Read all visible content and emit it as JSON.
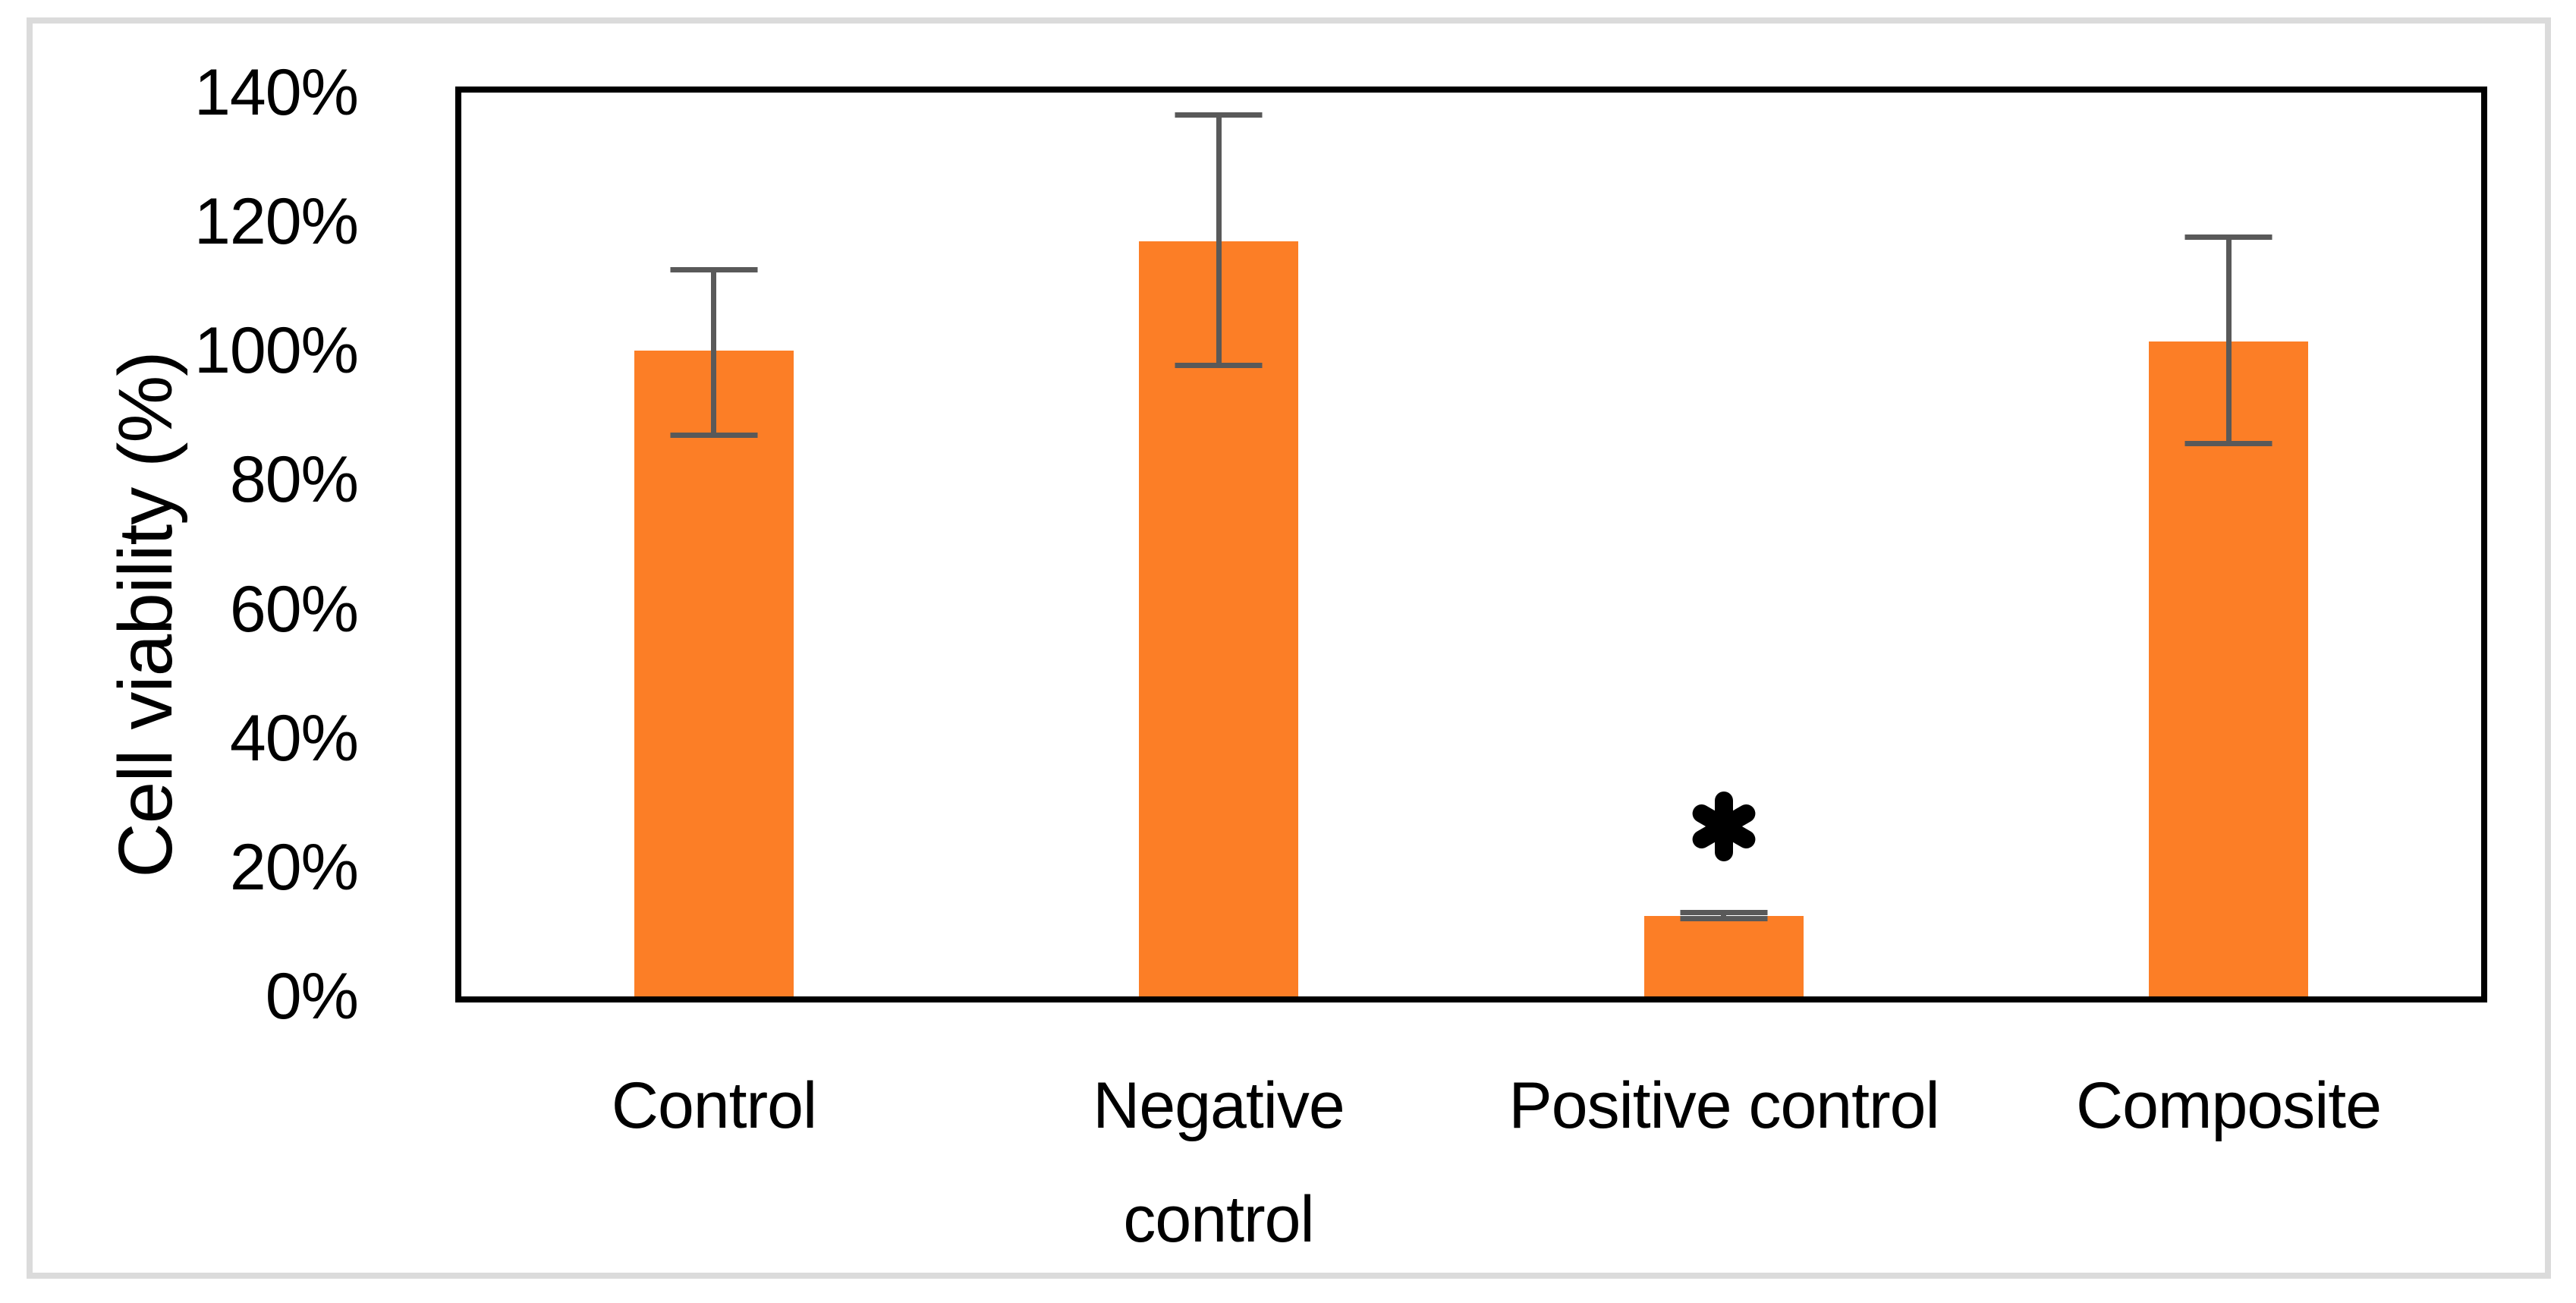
{
  "chart_data": {
    "type": "bar",
    "title": "",
    "xlabel": "",
    "ylabel": "Cell viability (%)",
    "categories": [
      "Control",
      "Negative control",
      "Positive control",
      "Composite"
    ],
    "values": [
      100,
      117,
      12.5,
      101.5
    ],
    "error_plus": [
      13,
      20,
      0.9,
      16.5
    ],
    "error_minus": [
      13.5,
      19.7,
      0.9,
      16.3
    ],
    "ylim": [
      0,
      140
    ],
    "ytick_step": 20,
    "ytick_labels": [
      "0%",
      "20%",
      "40%",
      "60%",
      "80%",
      "100%",
      "120%",
      "140%"
    ],
    "grid": false,
    "legend_position": "none",
    "bar_color": "#FC7E26",
    "error_bar_color": "#595959",
    "axis_color": "#000000",
    "figure_border_color": "#DBDBDB",
    "annotations": [
      {
        "symbol": "*",
        "category": "Positive control"
      }
    ]
  }
}
